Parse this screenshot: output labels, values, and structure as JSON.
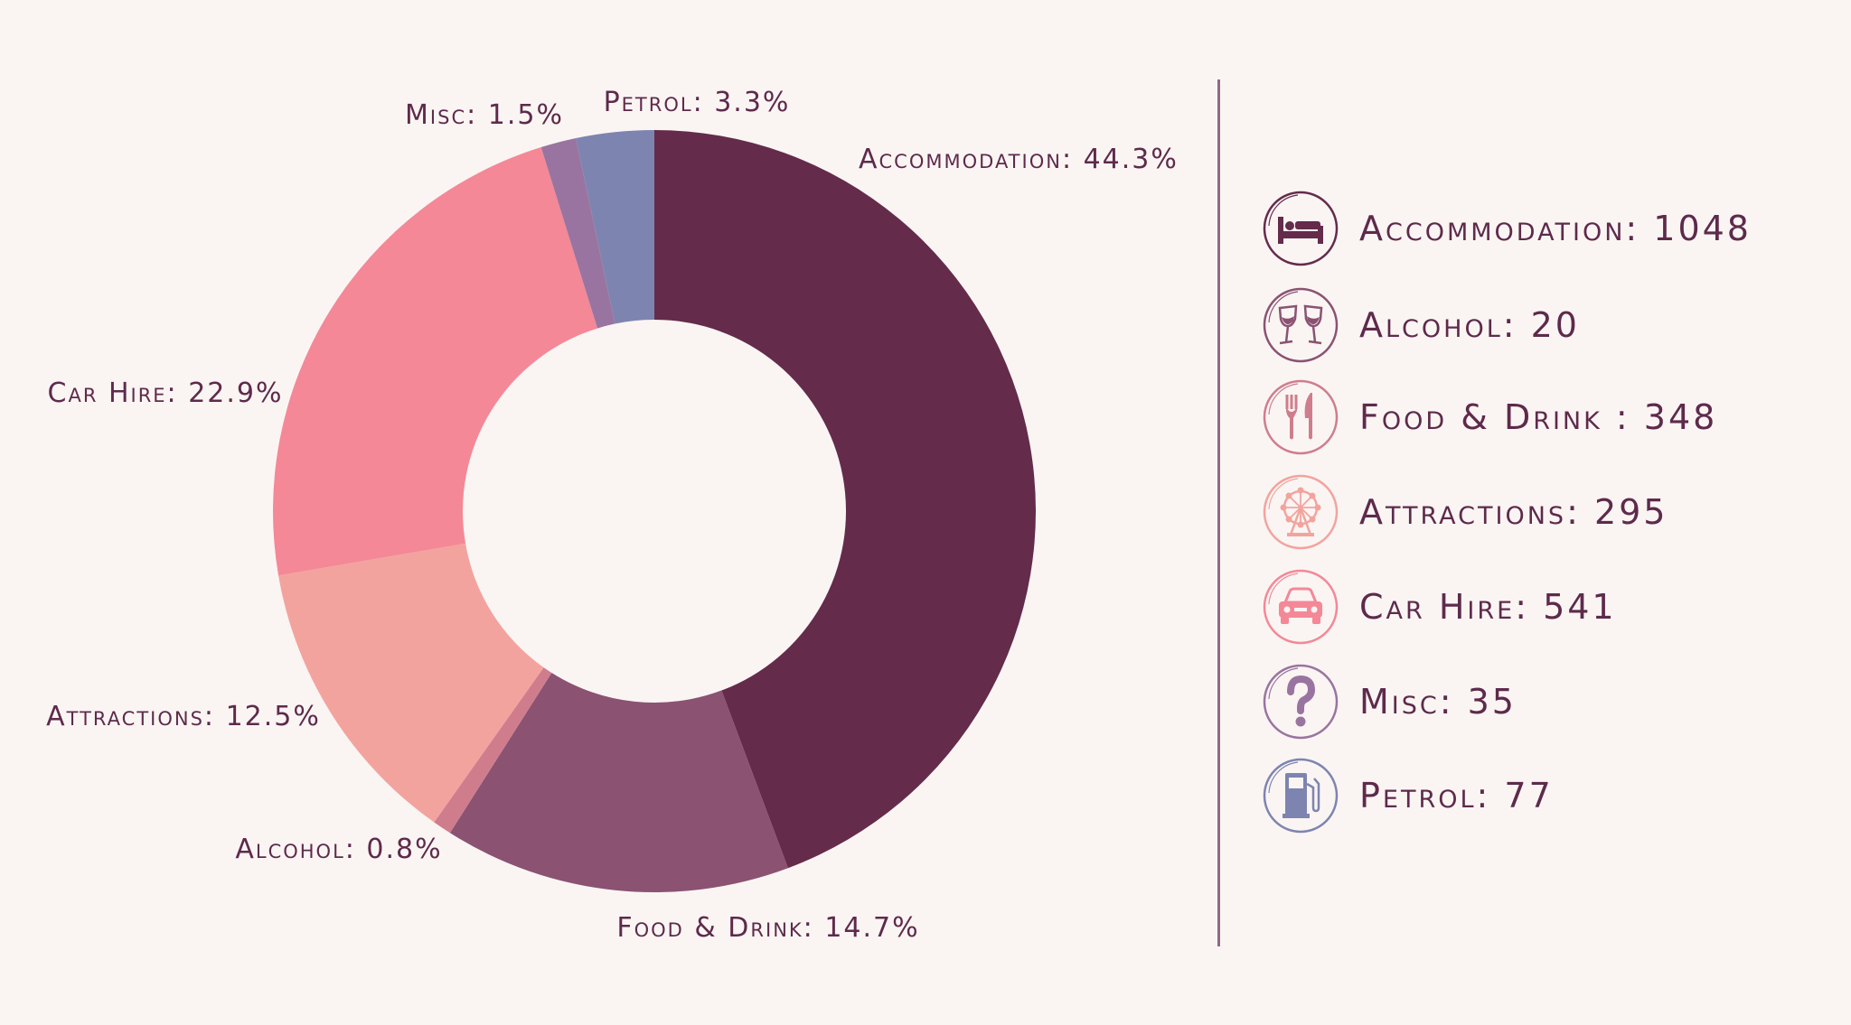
{
  "chart_data": {
    "type": "pie",
    "donut": true,
    "title": "",
    "slices": [
      {
        "label": "Accommodation: 44.3%",
        "name": "Accommodation",
        "percent": 44.3,
        "color": "#642b4b"
      },
      {
        "label": "Food & Drink: 14.7%",
        "name": "Food & Drink",
        "percent": 14.7,
        "color": "#8b5272"
      },
      {
        "label": "Alcohol: 0.8%",
        "name": "Alcohol",
        "percent": 0.8,
        "color": "#cf7d8d"
      },
      {
        "label": "Attractions: 12.5%",
        "name": "Attractions",
        "percent": 12.5,
        "color": "#f3a39e"
      },
      {
        "label": "Car Hire: 22.9%",
        "name": "Car Hire",
        "percent": 22.9,
        "color": "#f48897"
      },
      {
        "label": "Misc: 1.5%",
        "name": "Misc",
        "percent": 1.5,
        "color": "#9a74a0"
      },
      {
        "label": "Petrol: 3.3%",
        "name": "Petrol",
        "percent": 3.3,
        "color": "#7e84b0"
      }
    ]
  },
  "legend": [
    {
      "text": "Accommodation: 1048",
      "value": 1048,
      "icon": "bed-icon",
      "color": "#642b4b"
    },
    {
      "text": "Alcohol: 20",
      "value": 20,
      "icon": "wine-glasses-icon",
      "color": "#8b5272"
    },
    {
      "text": "Food & Drink : 348",
      "value": 348,
      "icon": "fork-knife-icon",
      "color": "#cf7d8d"
    },
    {
      "text": "Attractions: 295",
      "value": 295,
      "icon": "ferris-wheel-icon",
      "color": "#f3a39e"
    },
    {
      "text": "Car Hire: 541",
      "value": 541,
      "icon": "car-icon",
      "color": "#f48897"
    },
    {
      "text": "Misc: 35",
      "value": 35,
      "icon": "question-mark-icon",
      "color": "#9a74a0"
    },
    {
      "text": "Petrol: 77",
      "value": 77,
      "icon": "fuel-pump-icon",
      "color": "#7e84b0"
    }
  ]
}
